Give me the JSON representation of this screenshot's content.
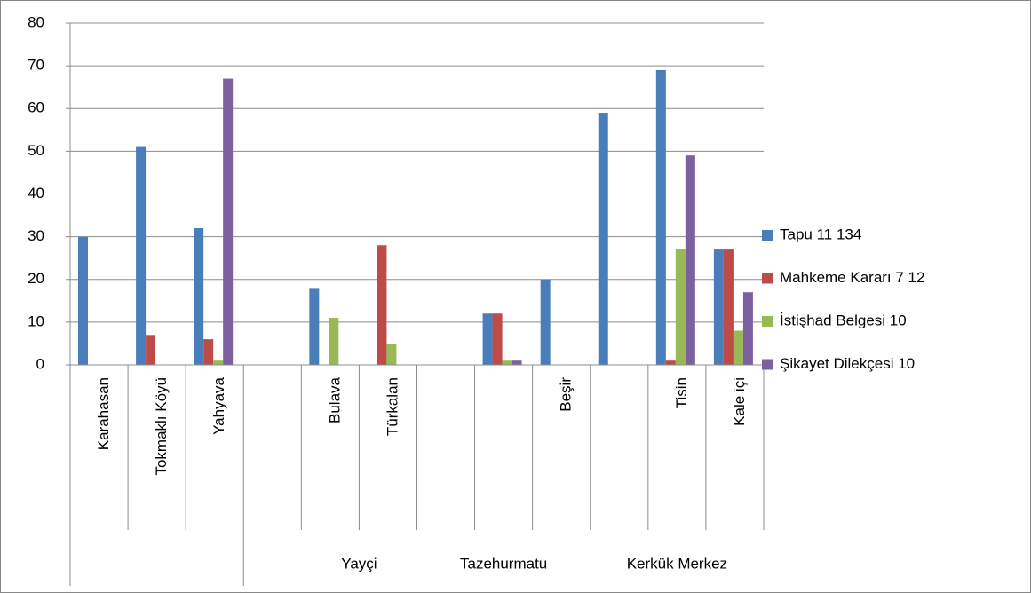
{
  "chart_data": {
    "type": "bar",
    "categories": [
      "Karahasan",
      "Tokmaklı Köyü",
      "Yahyava",
      null,
      "Bulava",
      "Türkalan",
      null,
      null,
      "Beşir",
      null,
      "Tisin",
      "Kale içi"
    ],
    "groups": [
      {
        "label": null,
        "span": 3
      },
      {
        "label": "Yayçi",
        "span": 4
      },
      {
        "label": "Tazehurmatu",
        "span": 1
      },
      {
        "label": null,
        "span": 1
      },
      {
        "label": "Kerkük Merkez",
        "span": 3
      }
    ],
    "series": [
      {
        "name": "Tapu 11 134",
        "color": "#4a7ebb",
        "values": [
          30,
          51,
          32,
          null,
          18,
          null,
          null,
          12,
          20,
          59,
          69,
          27
        ]
      },
      {
        "name": "Mahkeme Kararı 7 12",
        "color": "#be4b48",
        "values": [
          null,
          7,
          6,
          null,
          null,
          28,
          null,
          12,
          null,
          null,
          1,
          27
        ]
      },
      {
        "name": "İstişhad Belgesi 10",
        "color": "#98b954",
        "values": [
          null,
          null,
          1,
          null,
          11,
          5,
          null,
          1,
          null,
          null,
          27,
          8
        ]
      },
      {
        "name": "Şikayet Dilekçesi 10",
        "color": "#7d60a0",
        "values": [
          null,
          null,
          67,
          null,
          null,
          null,
          null,
          1,
          null,
          null,
          49,
          17
        ]
      }
    ],
    "ylim": [
      0,
      80
    ],
    "yticks": [
      0,
      10,
      20,
      30,
      40,
      50,
      60,
      70,
      80
    ],
    "grid": true,
    "legend": "right"
  }
}
